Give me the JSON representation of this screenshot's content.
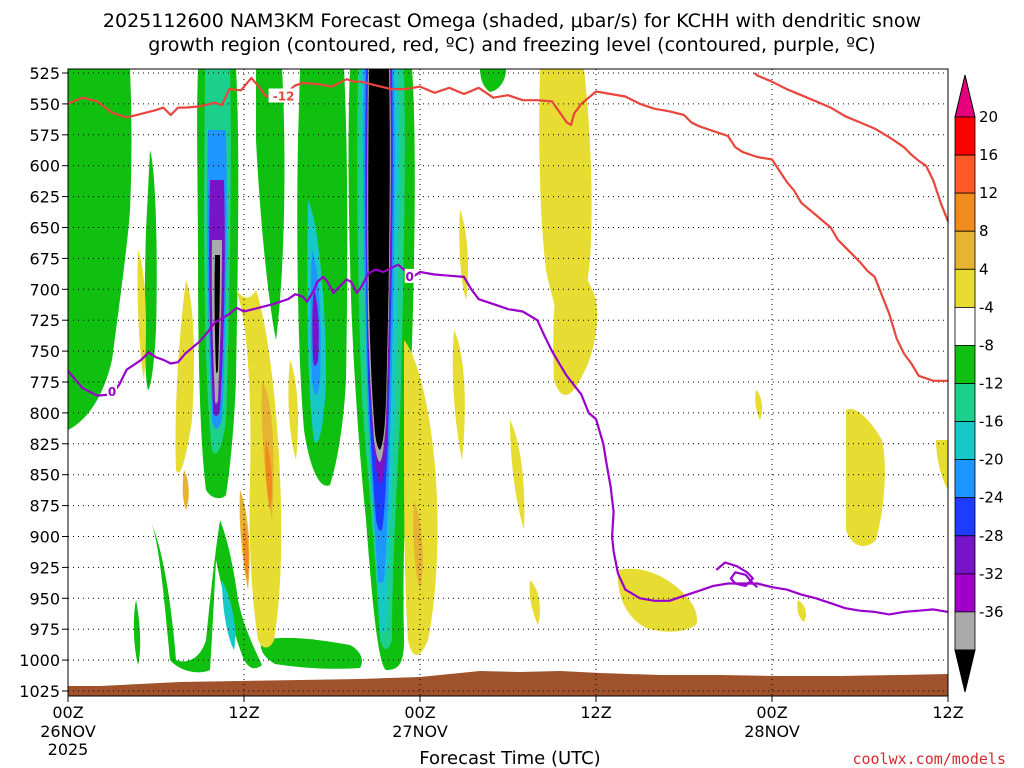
{
  "chart_data": {
    "type": "heatmap",
    "title_line1": "2025112600 NAM3KM Forecast Omega (shaded, μbar/s) for KCHH with dendritic snow",
    "title_line2": "growth region (contoured, red, ºC) and freezing level (contoured, purple, ºC)",
    "xlabel": "Forecast Time (UTC)",
    "credit": "coolwx.com/models",
    "y_ticks": [
      "525",
      "550",
      "575",
      "600",
      "625",
      "650",
      "675",
      "700",
      "725",
      "750",
      "775",
      "800",
      "825",
      "850",
      "875",
      "900",
      "925",
      "950",
      "975",
      "1000",
      "1025"
    ],
    "y_values": [
      525,
      550,
      575,
      600,
      625,
      650,
      675,
      700,
      725,
      750,
      775,
      800,
      825,
      850,
      875,
      900,
      925,
      950,
      975,
      1000,
      1025
    ],
    "ylim": [
      525,
      1025
    ],
    "x_hours": [
      0,
      12,
      24,
      36,
      48,
      60
    ],
    "xlim": [
      0,
      60
    ],
    "x_tick_labels": [
      "00Z",
      "12Z",
      "00Z",
      "12Z",
      "00Z",
      "12Z"
    ],
    "x_date_labels": [
      {
        "hour": 0,
        "text": "26NOV"
      },
      {
        "hour": 24,
        "text": "27NOV"
      },
      {
        "hour": 48,
        "text": "28NOV"
      }
    ],
    "x_year_label": {
      "hour": 0,
      "text": "2025"
    },
    "colorbar": {
      "labels": [
        "20",
        "16",
        "12",
        "8",
        "4",
        "-4",
        "-8",
        "-12",
        "-16",
        "-20",
        "-24",
        "-28",
        "-32",
        "-36"
      ],
      "levels": [
        20,
        16,
        12,
        8,
        4,
        -4,
        -8,
        -12,
        -16,
        -20,
        -24,
        -28,
        -32,
        -36
      ],
      "colors": [
        "#ff0000",
        "#ff5a28",
        "#f08c1e",
        "#e6b432",
        "#e6dc32",
        "#ffffff",
        "#10c010",
        "#1cd08c",
        "#18c8c8",
        "#1e96ff",
        "#1e3cff",
        "#7814c8",
        "#a000c8",
        "#aaaaaa",
        "#000000"
      ],
      "top_arrow_color": "#e6007e",
      "bottom_arrow_color": "#000000"
    },
    "contour_labels": [
      {
        "text": "-12",
        "hour": 14.7,
        "p": 544,
        "color": "#e8453c"
      },
      {
        "text": "0",
        "hour": 3.0,
        "p": 783,
        "color": "#9900cc"
      },
      {
        "text": "0",
        "hour": 23.3,
        "p": 690,
        "color": "#9900cc"
      }
    ],
    "series": [
      {
        "name": "dendritic-growth -12C",
        "color": "#e8453c",
        "points": [
          [
            0,
            550
          ],
          [
            1,
            545
          ],
          [
            2,
            548
          ],
          [
            3,
            557
          ],
          [
            4,
            561
          ],
          [
            5,
            558
          ],
          [
            6,
            555
          ],
          [
            6.5,
            553
          ],
          [
            7,
            559
          ],
          [
            7.5,
            553
          ],
          [
            8,
            553
          ],
          [
            9,
            552
          ],
          [
            10,
            549
          ],
          [
            10.5,
            551
          ],
          [
            11,
            538
          ],
          [
            11.8,
            539
          ],
          [
            12.5,
            529
          ],
          [
            13,
            536
          ],
          [
            13.5,
            544
          ],
          [
            14,
            542
          ],
          [
            15,
            540
          ],
          [
            15.5,
            535
          ],
          [
            16,
            533
          ],
          [
            17,
            534
          ],
          [
            18,
            536
          ],
          [
            19,
            530
          ],
          [
            19.5,
            532
          ],
          [
            20,
            532
          ],
          [
            21,
            535
          ],
          [
            22,
            538
          ],
          [
            23,
            538
          ],
          [
            24,
            536
          ],
          [
            25,
            541
          ],
          [
            26,
            537
          ],
          [
            27,
            542
          ],
          [
            28,
            537
          ],
          [
            29,
            545
          ],
          [
            30,
            543
          ],
          [
            31,
            547
          ],
          [
            32,
            547
          ],
          [
            33,
            548
          ],
          [
            34,
            565
          ],
          [
            34.3,
            567
          ],
          [
            34.5,
            558
          ],
          [
            35,
            550
          ],
          [
            35.5,
            545
          ],
          [
            36,
            540
          ],
          [
            37,
            542
          ],
          [
            38,
            544
          ],
          [
            39,
            550
          ],
          [
            40,
            554
          ],
          [
            41,
            556
          ],
          [
            42,
            559
          ],
          [
            42.5,
            565
          ],
          [
            43,
            568
          ],
          [
            44,
            572
          ],
          [
            45,
            576
          ],
          [
            45.5,
            585
          ],
          [
            46,
            589
          ],
          [
            47,
            593
          ],
          [
            48,
            595
          ],
          [
            48.5,
            604
          ],
          [
            49,
            613
          ],
          [
            49.5,
            620
          ],
          [
            50,
            630
          ],
          [
            51,
            640
          ],
          [
            52,
            650
          ],
          [
            52.5,
            660
          ],
          [
            53,
            666
          ],
          [
            53.5,
            672
          ],
          [
            54,
            678
          ],
          [
            54.5,
            685
          ],
          [
            55,
            690
          ],
          [
            55.5,
            705
          ],
          [
            56,
            720
          ],
          [
            56.5,
            740
          ],
          [
            57,
            752
          ],
          [
            57.5,
            760
          ],
          [
            58,
            770
          ],
          [
            59,
            774
          ],
          [
            60,
            774
          ]
        ]
      },
      {
        "name": "dendritic-growth -12C NE",
        "color": "#e8453c",
        "points": [
          [
            46.8,
            525
          ],
          [
            47,
            527
          ],
          [
            48,
            532
          ],
          [
            49,
            538
          ],
          [
            50,
            543
          ],
          [
            51,
            548
          ],
          [
            52,
            553
          ],
          [
            53,
            560
          ],
          [
            54,
            565
          ],
          [
            55,
            570
          ],
          [
            56,
            577
          ],
          [
            57,
            585
          ],
          [
            57.5,
            591
          ],
          [
            58,
            596
          ],
          [
            58.5,
            600
          ],
          [
            59,
            612
          ],
          [
            59.5,
            630
          ],
          [
            60,
            645
          ]
        ]
      },
      {
        "name": "freezing-level 0C",
        "color": "#9900cc",
        "points": [
          [
            0,
            766
          ],
          [
            0.5,
            773
          ],
          [
            1,
            780
          ],
          [
            2,
            786
          ],
          [
            3,
            785
          ],
          [
            3.5,
            777
          ],
          [
            4,
            765
          ],
          [
            5,
            757
          ],
          [
            5.5,
            751
          ],
          [
            6,
            755
          ],
          [
            6.5,
            757
          ],
          [
            7,
            760
          ],
          [
            7.5,
            759
          ],
          [
            8,
            752
          ],
          [
            9,
            742
          ],
          [
            9.5,
            735
          ],
          [
            10,
            727
          ],
          [
            11,
            720
          ],
          [
            11.5,
            715
          ],
          [
            12,
            718
          ],
          [
            13,
            715
          ],
          [
            14,
            712
          ],
          [
            15,
            708
          ],
          [
            15.5,
            704
          ],
          [
            16,
            706
          ],
          [
            16.3,
            710
          ],
          [
            16.8,
            700
          ],
          [
            17,
            694
          ],
          [
            17.4,
            690
          ],
          [
            17.7,
            694
          ],
          [
            18.1,
            703
          ],
          [
            18.5,
            698
          ],
          [
            19,
            692
          ],
          [
            19.3,
            694
          ],
          [
            19.7,
            703
          ],
          [
            20,
            698
          ],
          [
            20.5,
            687
          ],
          [
            21,
            684
          ],
          [
            21.5,
            686
          ],
          [
            22,
            683
          ],
          [
            22.5,
            680
          ],
          [
            23,
            685
          ],
          [
            23.5,
            690
          ],
          [
            24,
            686
          ],
          [
            25,
            688
          ],
          [
            26,
            689
          ],
          [
            27,
            690
          ],
          [
            27.5,
            700
          ],
          [
            28,
            708
          ],
          [
            29,
            712
          ],
          [
            30,
            716
          ],
          [
            31,
            718
          ],
          [
            32,
            725
          ],
          [
            32.5,
            738
          ],
          [
            33,
            750
          ],
          [
            33.5,
            760
          ],
          [
            34,
            770
          ],
          [
            35,
            785
          ],
          [
            35.5,
            800
          ],
          [
            36,
            805
          ],
          [
            36.5,
            825
          ],
          [
            36.7,
            840
          ],
          [
            37,
            860
          ],
          [
            37.2,
            880
          ],
          [
            37.1,
            900
          ],
          [
            37.2,
            912
          ],
          [
            37.5,
            930
          ],
          [
            38,
            943
          ],
          [
            39,
            950
          ],
          [
            40,
            952
          ],
          [
            41,
            952
          ],
          [
            42,
            948
          ],
          [
            43,
            944
          ],
          [
            44,
            940
          ],
          [
            45,
            938
          ],
          [
            46,
            938
          ],
          [
            47,
            938
          ],
          [
            48,
            941
          ],
          [
            49,
            943
          ],
          [
            50,
            947
          ],
          [
            51,
            950
          ],
          [
            52,
            954
          ],
          [
            53,
            958
          ],
          [
            54,
            960
          ],
          [
            55,
            961
          ],
          [
            56,
            963
          ],
          [
            57,
            961
          ],
          [
            58,
            960
          ],
          [
            59,
            959
          ],
          [
            60,
            961
          ]
        ]
      },
      {
        "name": "freezing-level 0C loop",
        "color": "#9900cc",
        "points": [
          [
            44.2,
            927
          ],
          [
            44.8,
            921
          ],
          [
            45.6,
            924
          ],
          [
            46.3,
            929
          ],
          [
            46.7,
            934
          ],
          [
            46.2,
            940
          ],
          [
            45.5,
            938
          ],
          [
            45.2,
            934
          ],
          [
            45.5,
            929
          ],
          [
            46.2,
            931
          ],
          [
            46.7,
            938
          ],
          [
            47,
            941
          ]
        ]
      }
    ]
  }
}
